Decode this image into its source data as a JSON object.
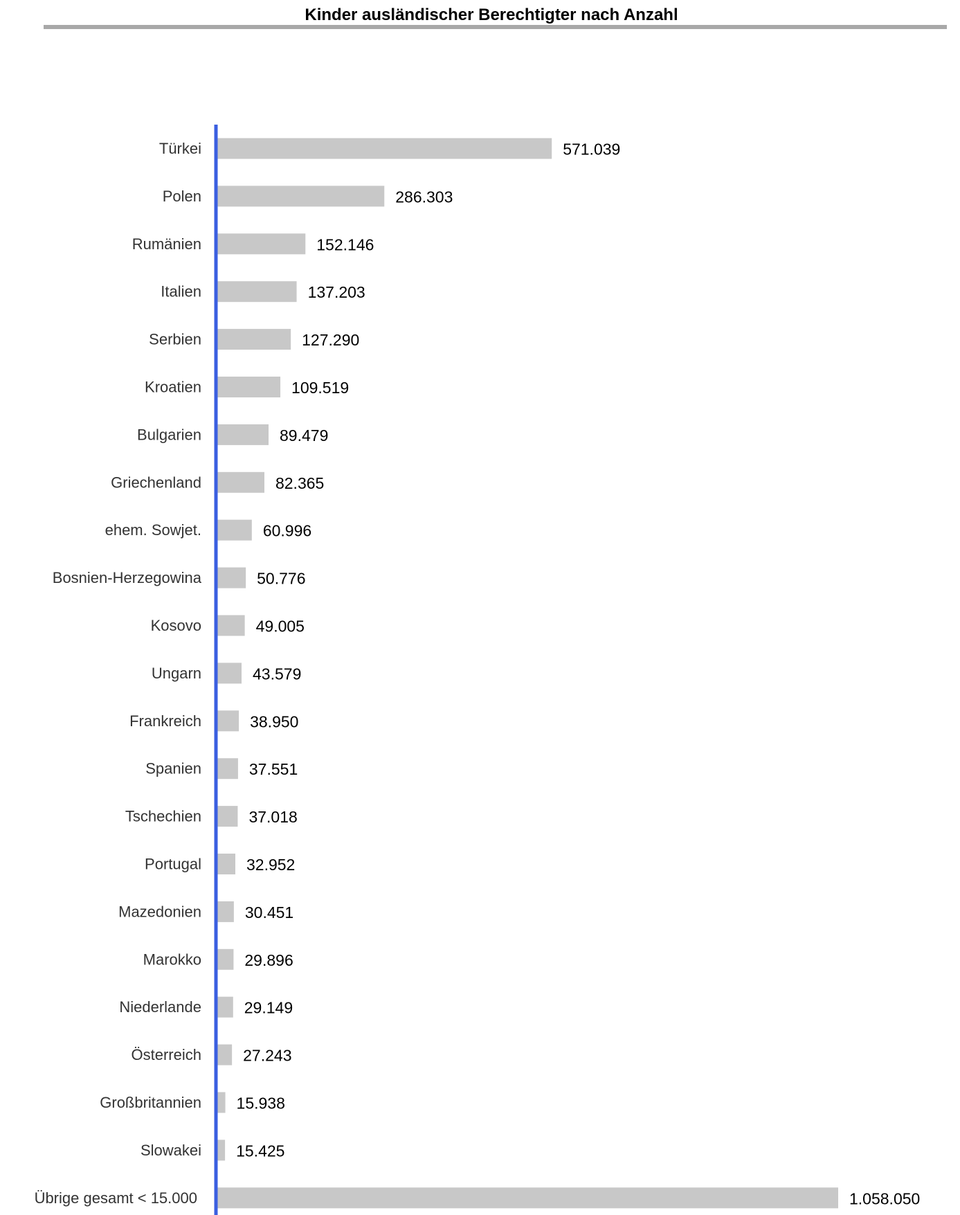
{
  "colors": {
    "bar": "#c8c8c8",
    "axis": "#3b5fe0",
    "title_rule": "#a8a8a8"
  },
  "chart_data": {
    "type": "bar",
    "orientation": "horizontal",
    "title": "Kinder ausländischer Berechtigter nach Anzahl",
    "xlabel": "",
    "ylabel": "",
    "grid": false,
    "legend": "none",
    "xlim": [
      0,
      1058050
    ],
    "categories": [
      "Türkei",
      "Polen",
      "Rumänien",
      "Italien",
      "Serbien",
      "Kroatien",
      "Bulgarien",
      "Griechenland",
      "ehem. Sowjet.",
      "Bosnien-Herzegowina",
      "Kosovo",
      "Ungarn",
      "Frankreich",
      "Spanien",
      "Tschechien",
      "Portugal",
      "Mazedonien",
      "Marokko",
      "Niederlande",
      "Österreich",
      "Großbritannien",
      "Slowakei",
      "Übrige gesamt < 15.000"
    ],
    "values": [
      571039,
      286303,
      152146,
      137203,
      127290,
      109519,
      89479,
      82365,
      60996,
      50776,
      49005,
      43579,
      38950,
      37551,
      37018,
      32952,
      30451,
      29896,
      29149,
      27243,
      15938,
      15425,
      1058050
    ],
    "value_labels": [
      "571.039",
      "286.303",
      "152.146",
      "137.203",
      "127.290",
      "109.519",
      "89.479",
      "82.365",
      "60.996",
      "50.776",
      "49.005",
      "43.579",
      "38.950",
      "37.551",
      "37.018",
      "32.952",
      "30.451",
      "29.896",
      "29.149",
      "27.243",
      "15.938",
      "15.425",
      "1.058.050"
    ]
  }
}
